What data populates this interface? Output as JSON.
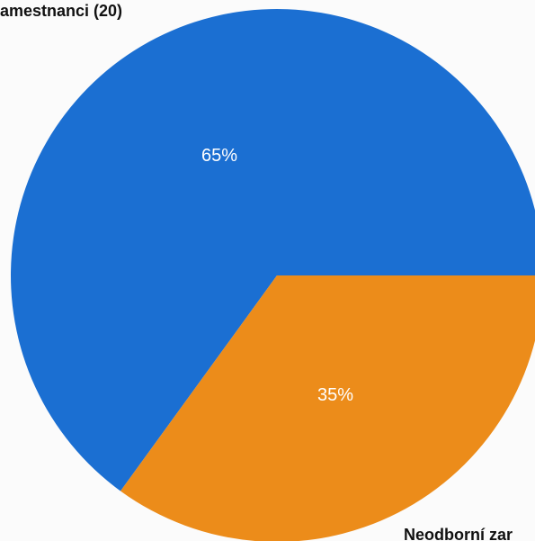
{
  "chart_data": {
    "type": "pie",
    "categories": [
      "amestnanci (20)",
      "Neodborní zar"
    ],
    "values": [
      65,
      35
    ],
    "data_labels": [
      "65%",
      "35%"
    ],
    "colors": [
      "#1b6fd2",
      "#ec8c1a"
    ],
    "legend": "none",
    "title": ""
  }
}
